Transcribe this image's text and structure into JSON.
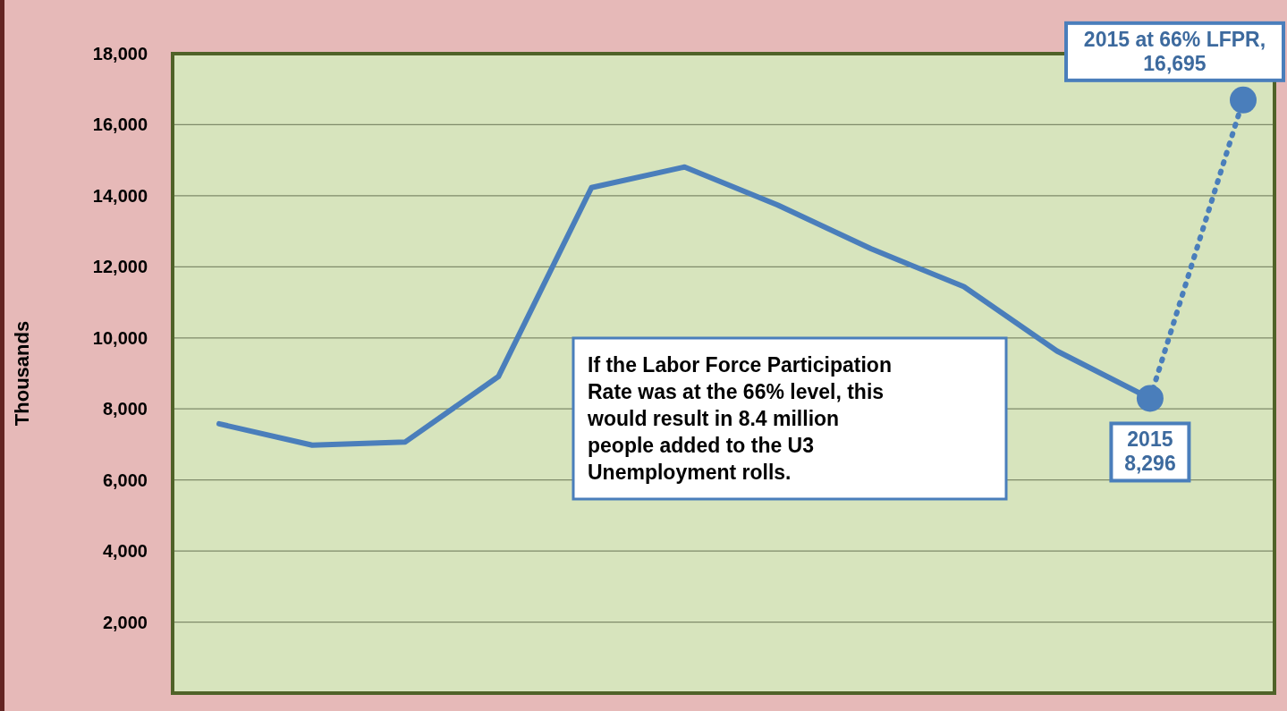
{
  "chart_data": {
    "type": "line",
    "ylabel": "Thousands",
    "categories": [
      null,
      null,
      null,
      null,
      null,
      null,
      null,
      null,
      null,
      null,
      null,
      null
    ],
    "ylim": [
      0,
      18000
    ],
    "yticks": [
      {
        "value": 0,
        "label": null
      },
      {
        "value": 2000,
        "label": "2,000"
      },
      {
        "value": 4000,
        "label": "4,000"
      },
      {
        "value": 6000,
        "label": "6,000"
      },
      {
        "value": 8000,
        "label": "8,000"
      },
      {
        "value": 10000,
        "label": "10,000"
      },
      {
        "value": 12000,
        "label": "12,000"
      },
      {
        "value": 14000,
        "label": "14,000"
      },
      {
        "value": 16000,
        "label": "16,000"
      },
      {
        "value": 18000,
        "label": "18,000"
      }
    ],
    "grid": "y",
    "series": [
      {
        "color": "#4a7ebb",
        "marker": "none",
        "line_style": "solid",
        "values": [
          7580,
          6980,
          7070,
          8910,
          14230,
          14810,
          13740,
          12510,
          11440,
          9630,
          8296,
          null
        ]
      },
      {
        "color": "#4a7ebb",
        "marker": "circle",
        "line_style": "dotted",
        "values": [
          null,
          null,
          null,
          null,
          null,
          null,
          null,
          null,
          null,
          null,
          8296,
          16695
        ],
        "value_labels": [
          null,
          null,
          null,
          null,
          null,
          null,
          null,
          null,
          null,
          null,
          "2015\n8,296",
          "2015 at 66% LFPR,\n16,695"
        ]
      }
    ],
    "annotations": [
      "If the Labor Force Participation\nRate was at the 66% level, this\nwould result in 8.4 million\npeople added to the U3\nUnemployment rolls."
    ]
  }
}
